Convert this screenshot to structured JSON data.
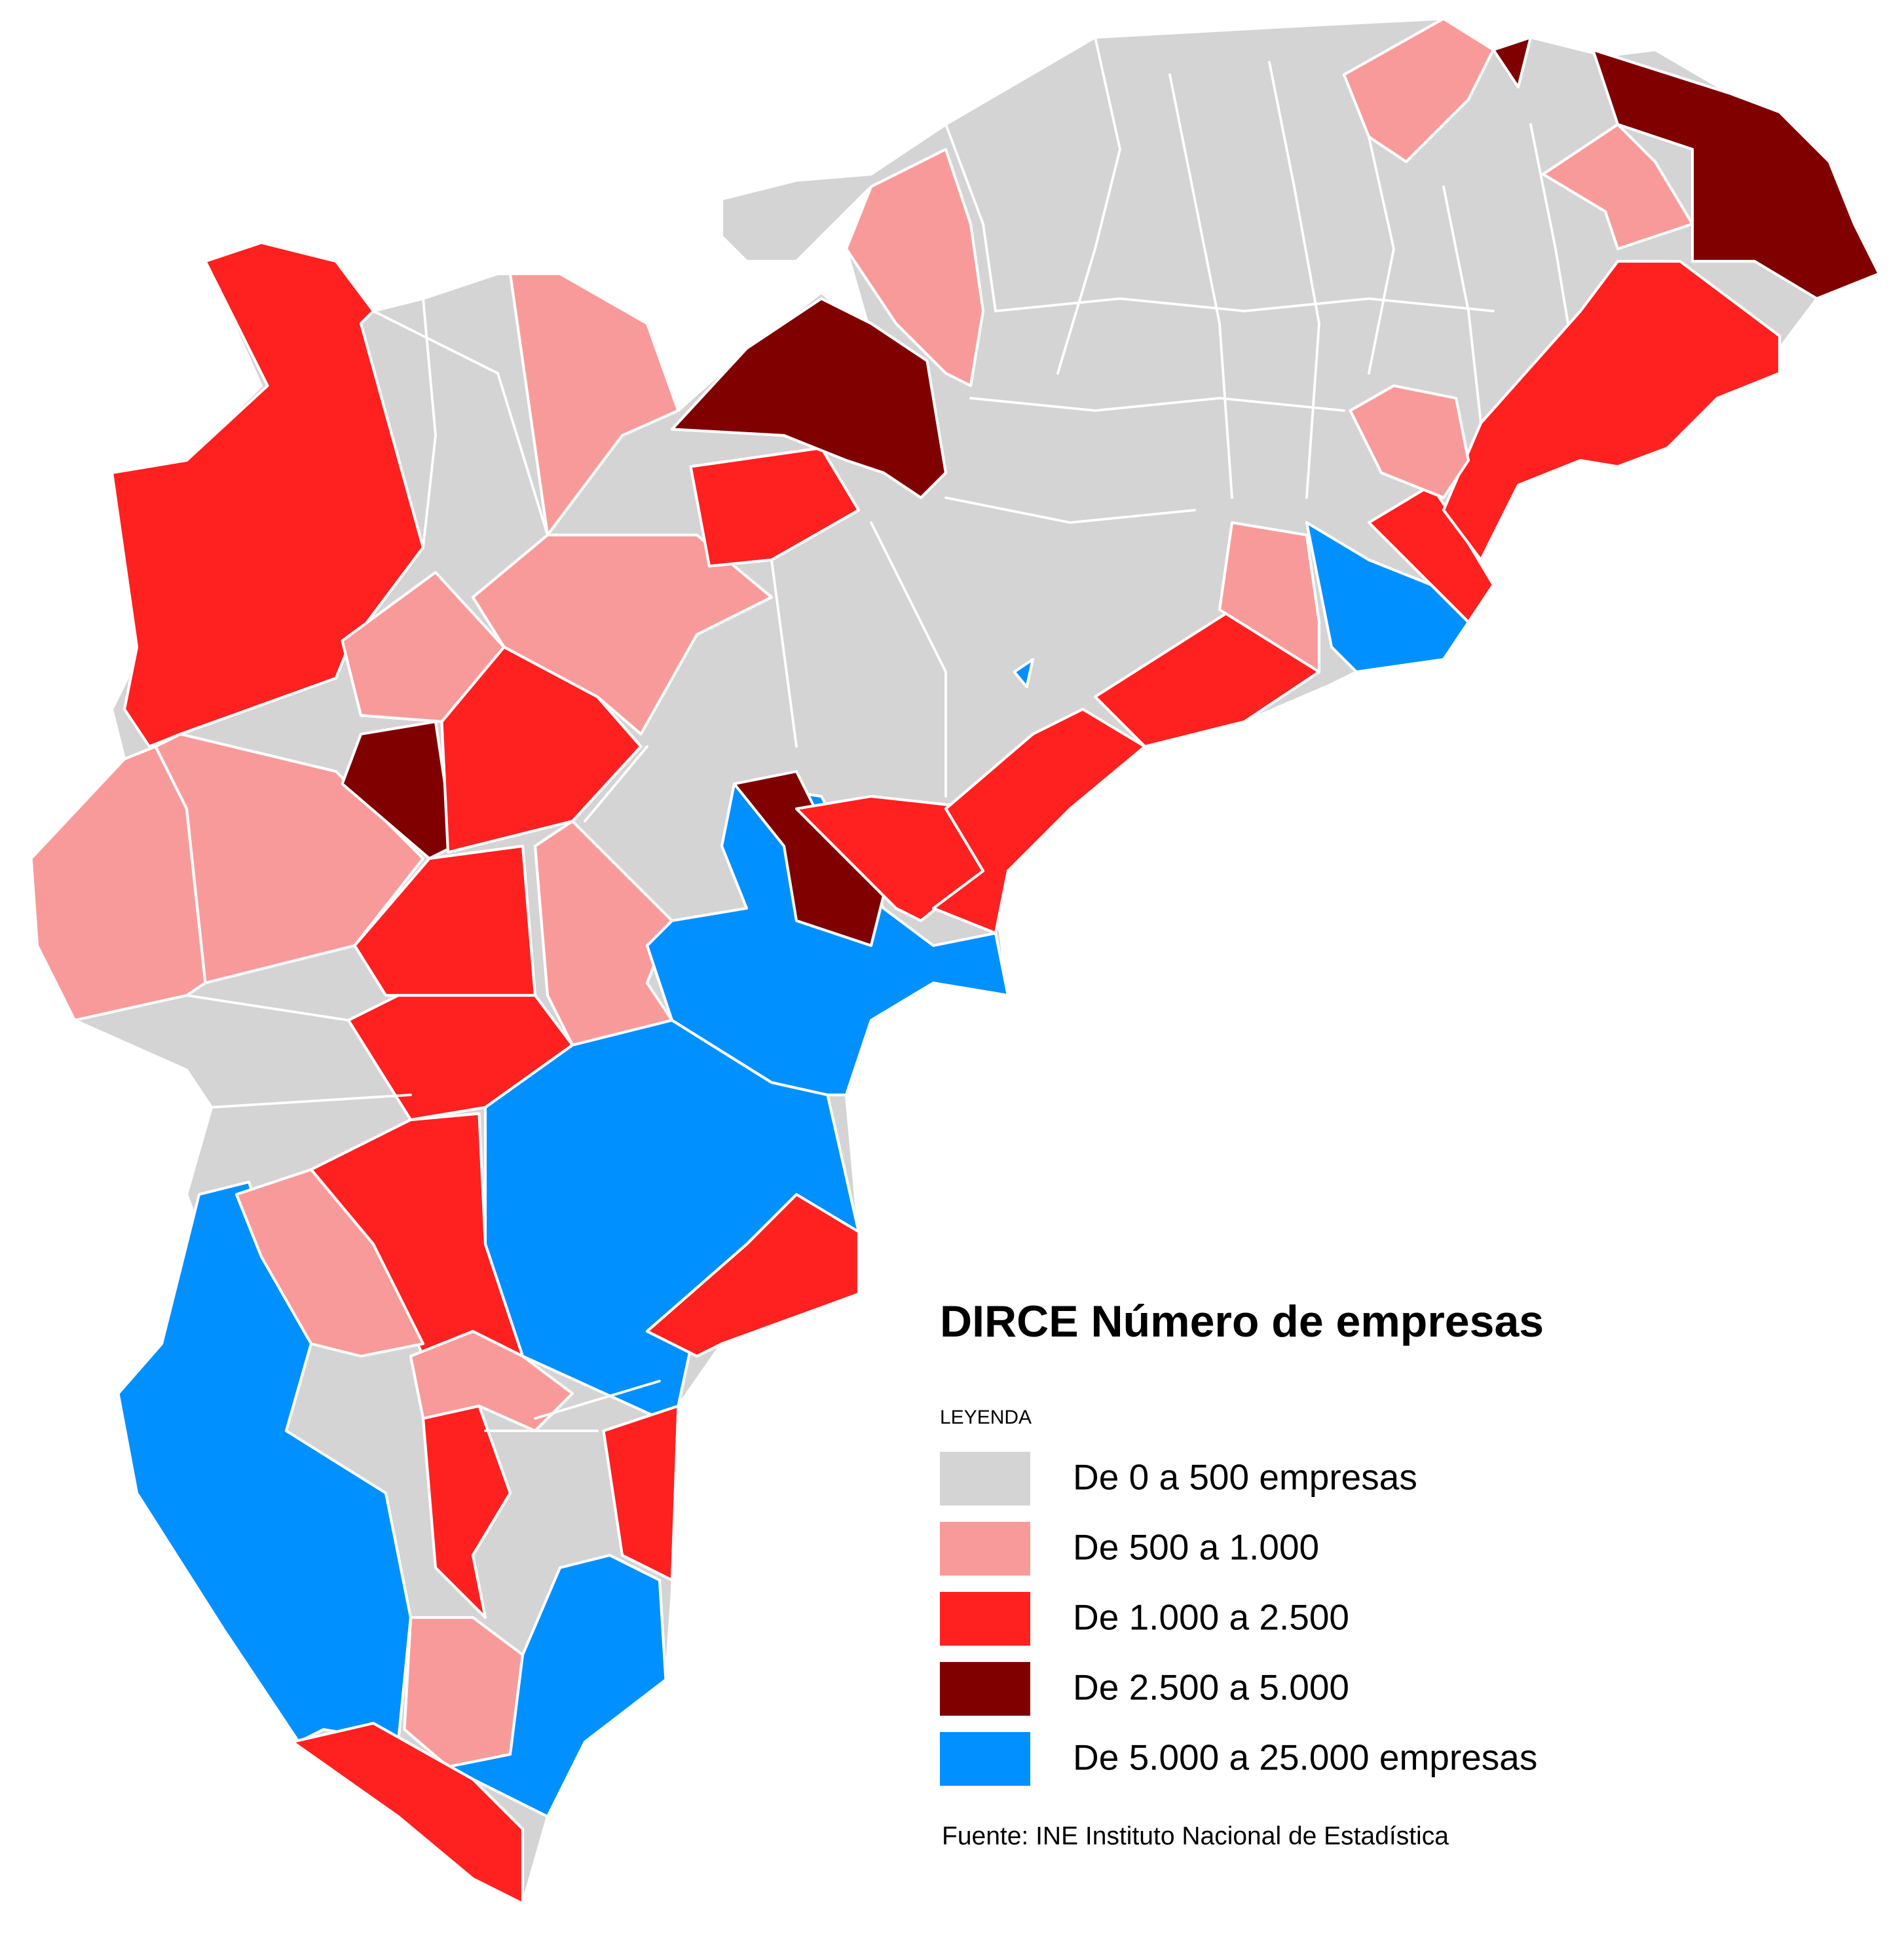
{
  "title": "DIRCE Número de empresas",
  "legend": {
    "heading": "LEYENDA",
    "items": [
      {
        "label": "De 0 a 500 empresas",
        "color": "#d4d4d4"
      },
      {
        "label": "De 500 a 1.000",
        "color": "#f99a9a"
      },
      {
        "label": "De 1.000 a 2.500",
        "color": "#ff2020"
      },
      {
        "label": "De 2.500 a 5.000",
        "color": "#800000"
      },
      {
        "label": "De 5.000 a 25.000 empresas",
        "color": "#0090ff"
      }
    ]
  },
  "source": "Fuente: INE Instituto Nacional de Estadística"
}
